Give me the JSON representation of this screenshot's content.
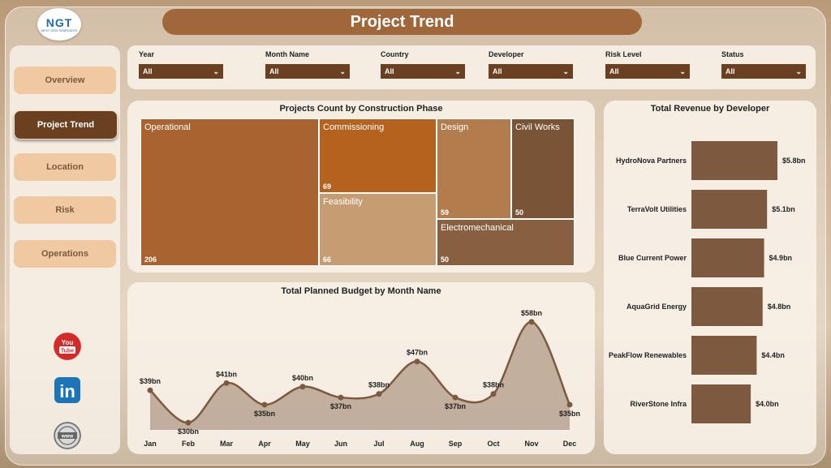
{
  "header": {
    "title": "Project Trend",
    "logo_text": "NGT",
    "logo_sub": "NEXT GEN TEMPLATES"
  },
  "sidebar": {
    "items": [
      {
        "label": "Overview",
        "active": false
      },
      {
        "label": "Project Trend",
        "active": true
      },
      {
        "label": "Location",
        "active": false
      },
      {
        "label": "Risk",
        "active": false
      },
      {
        "label": "Operations",
        "active": false
      }
    ],
    "social": [
      {
        "icon": "youtube-icon",
        "label": "You Tube"
      },
      {
        "icon": "linkedin-icon",
        "label": "in"
      },
      {
        "icon": "web-icon",
        "label": "www"
      }
    ]
  },
  "filters": [
    {
      "label": "Year",
      "value": "All"
    },
    {
      "label": "Month Name",
      "value": "All"
    },
    {
      "label": "Country",
      "value": "All"
    },
    {
      "label": "Developer",
      "value": "All"
    },
    {
      "label": "Risk Level",
      "value": "All"
    },
    {
      "label": "Status",
      "value": "All"
    }
  ],
  "colors": {
    "accent": "#6a4021",
    "title_bar": "#a0673a",
    "nav": "#f0c9a2",
    "bar": "#7d5a3f"
  },
  "chart_data": [
    {
      "type": "treemap",
      "title": "Projects Count by Construction Phase",
      "categories": [
        "Operational",
        "Commissioning",
        "Feasibility",
        "Design",
        "Civil Works",
        "Electromechanical"
      ],
      "values": [
        206,
        69,
        66,
        59,
        50,
        50
      ],
      "value_labels": [
        "206",
        "69",
        "66",
        "59",
        "50",
        "50"
      ],
      "colors": [
        "#a86330",
        "#b5621f",
        "#c69c72",
        "#b37c4d",
        "#7a5436",
        "#88603f"
      ]
    },
    {
      "type": "bar",
      "orientation": "horizontal",
      "title": "Total Revenue by Developer",
      "categories": [
        "HydroNova Partners",
        "TerraVolt Utilities",
        "Blue Current Power",
        "AquaGrid Energy",
        "PeakFlow Renewables",
        "RiverStone Infra"
      ],
      "values": [
        5.8,
        5.1,
        4.9,
        4.8,
        4.4,
        4.0
      ],
      "value_labels": [
        "$5.8bn",
        "$5.1bn",
        "$4.9bn",
        "$4.8bn",
        "$4.4bn",
        "$4.0bn"
      ],
      "unit": "bn"
    },
    {
      "type": "area",
      "title": "Total Planned Budget by Month Name",
      "categories": [
        "Jan",
        "Feb",
        "Mar",
        "Apr",
        "May",
        "Jun",
        "Jul",
        "Aug",
        "Sep",
        "Oct",
        "Nov",
        "Dec"
      ],
      "values": [
        39,
        30,
        41,
        35,
        40,
        37,
        38,
        47,
        37,
        38,
        58,
        35
      ],
      "value_labels": [
        "$39bn",
        "$30bn",
        "$41bn",
        "$35bn",
        "$40bn",
        "$37bn",
        "$38bn",
        "$47bn",
        "$37bn",
        "$38bn",
        "$58bn",
        "$35bn"
      ],
      "ylim": [
        28,
        60
      ]
    }
  ]
}
